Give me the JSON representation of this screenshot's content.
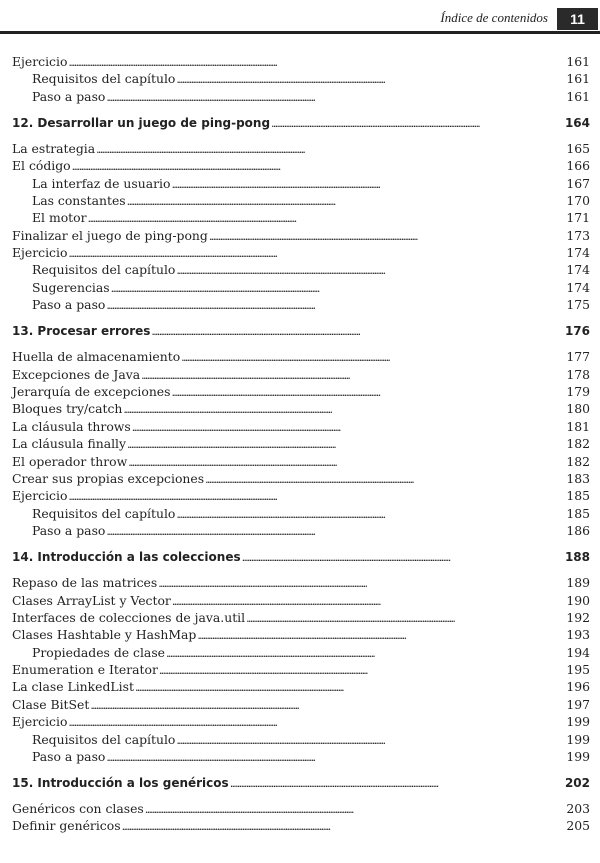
{
  "header": {
    "section_title": "Índice de contenidos",
    "page_number": "11"
  },
  "entries": [
    {
      "level": 1,
      "title": "Ejercicio",
      "page": "161"
    },
    {
      "level": 2,
      "title": "Requisitos del capítulo",
      "page": "161"
    },
    {
      "level": 2,
      "title": "Paso a paso",
      "page": "161"
    },
    {
      "level": 0,
      "title": "12. Desarrollar un juego de ping-pong",
      "page": "164"
    },
    {
      "level": 1,
      "title": "La estrategia",
      "page": "165"
    },
    {
      "level": 1,
      "title": "El código",
      "page": "166"
    },
    {
      "level": 2,
      "title": "La interfaz de usuario",
      "page": "167"
    },
    {
      "level": 2,
      "title": "Las constantes",
      "page": "170"
    },
    {
      "level": 2,
      "title": "El motor",
      "page": "171"
    },
    {
      "level": 1,
      "title": "Finalizar el juego de ping-pong",
      "page": "173"
    },
    {
      "level": 1,
      "title": "Ejercicio",
      "page": "174"
    },
    {
      "level": 2,
      "title": "Requisitos del capítulo",
      "page": "174"
    },
    {
      "level": 2,
      "title": "Sugerencias",
      "page": "174"
    },
    {
      "level": 2,
      "title": "Paso a paso",
      "page": "175"
    },
    {
      "level": 0,
      "title": "13. Procesar errores",
      "page": "176"
    },
    {
      "level": 1,
      "title": "Huella de almacenamiento",
      "page": "177"
    },
    {
      "level": 1,
      "title": "Excepciones de Java",
      "page": "178"
    },
    {
      "level": 1,
      "title": "Jerarquía de excepciones",
      "page": "179"
    },
    {
      "level": 1,
      "title": "Bloques try/catch",
      "page": "180"
    },
    {
      "level": 1,
      "title": "La cláusula throws",
      "page": "181"
    },
    {
      "level": 1,
      "title": "La cláusula finally",
      "page": "182"
    },
    {
      "level": 1,
      "title": "El operador throw",
      "page": "182"
    },
    {
      "level": 1,
      "title": "Crear sus propias excepciones",
      "page": "183"
    },
    {
      "level": 1,
      "title": "Ejercicio",
      "page": "185"
    },
    {
      "level": 2,
      "title": "Requisitos del capítulo",
      "page": "185"
    },
    {
      "level": 2,
      "title": "Paso a paso",
      "page": "186"
    },
    {
      "level": 0,
      "title": "14. Introducción a las colecciones",
      "page": "188"
    },
    {
      "level": 1,
      "title": "Repaso de las matrices",
      "page": "189"
    },
    {
      "level": 1,
      "title": "Clases ArrayList y Vector",
      "page": "190"
    },
    {
      "level": 1,
      "title": "Interfaces de colecciones de java.util",
      "page": "192"
    },
    {
      "level": 1,
      "title": "Clases Hashtable y HashMap",
      "page": "193"
    },
    {
      "level": 2,
      "title": "Propiedades de clase",
      "page": "194"
    },
    {
      "level": 1,
      "title": "Enumeration e Iterator",
      "page": "195"
    },
    {
      "level": 1,
      "title": "La clase LinkedList",
      "page": "196"
    },
    {
      "level": 1,
      "title": "Clase BitSet",
      "page": "197"
    },
    {
      "level": 1,
      "title": "Ejercicio",
      "page": "199"
    },
    {
      "level": 2,
      "title": "Requisitos del capítulo",
      "page": "199"
    },
    {
      "level": 2,
      "title": "Paso a paso",
      "page": "199"
    },
    {
      "level": 0,
      "title": "15. Introducción a los genéricos",
      "page": "202"
    },
    {
      "level": 1,
      "title": "Genéricos con clases",
      "page": "203"
    },
    {
      "level": 1,
      "title": "Definir genéricos",
      "page": "205"
    }
  ]
}
